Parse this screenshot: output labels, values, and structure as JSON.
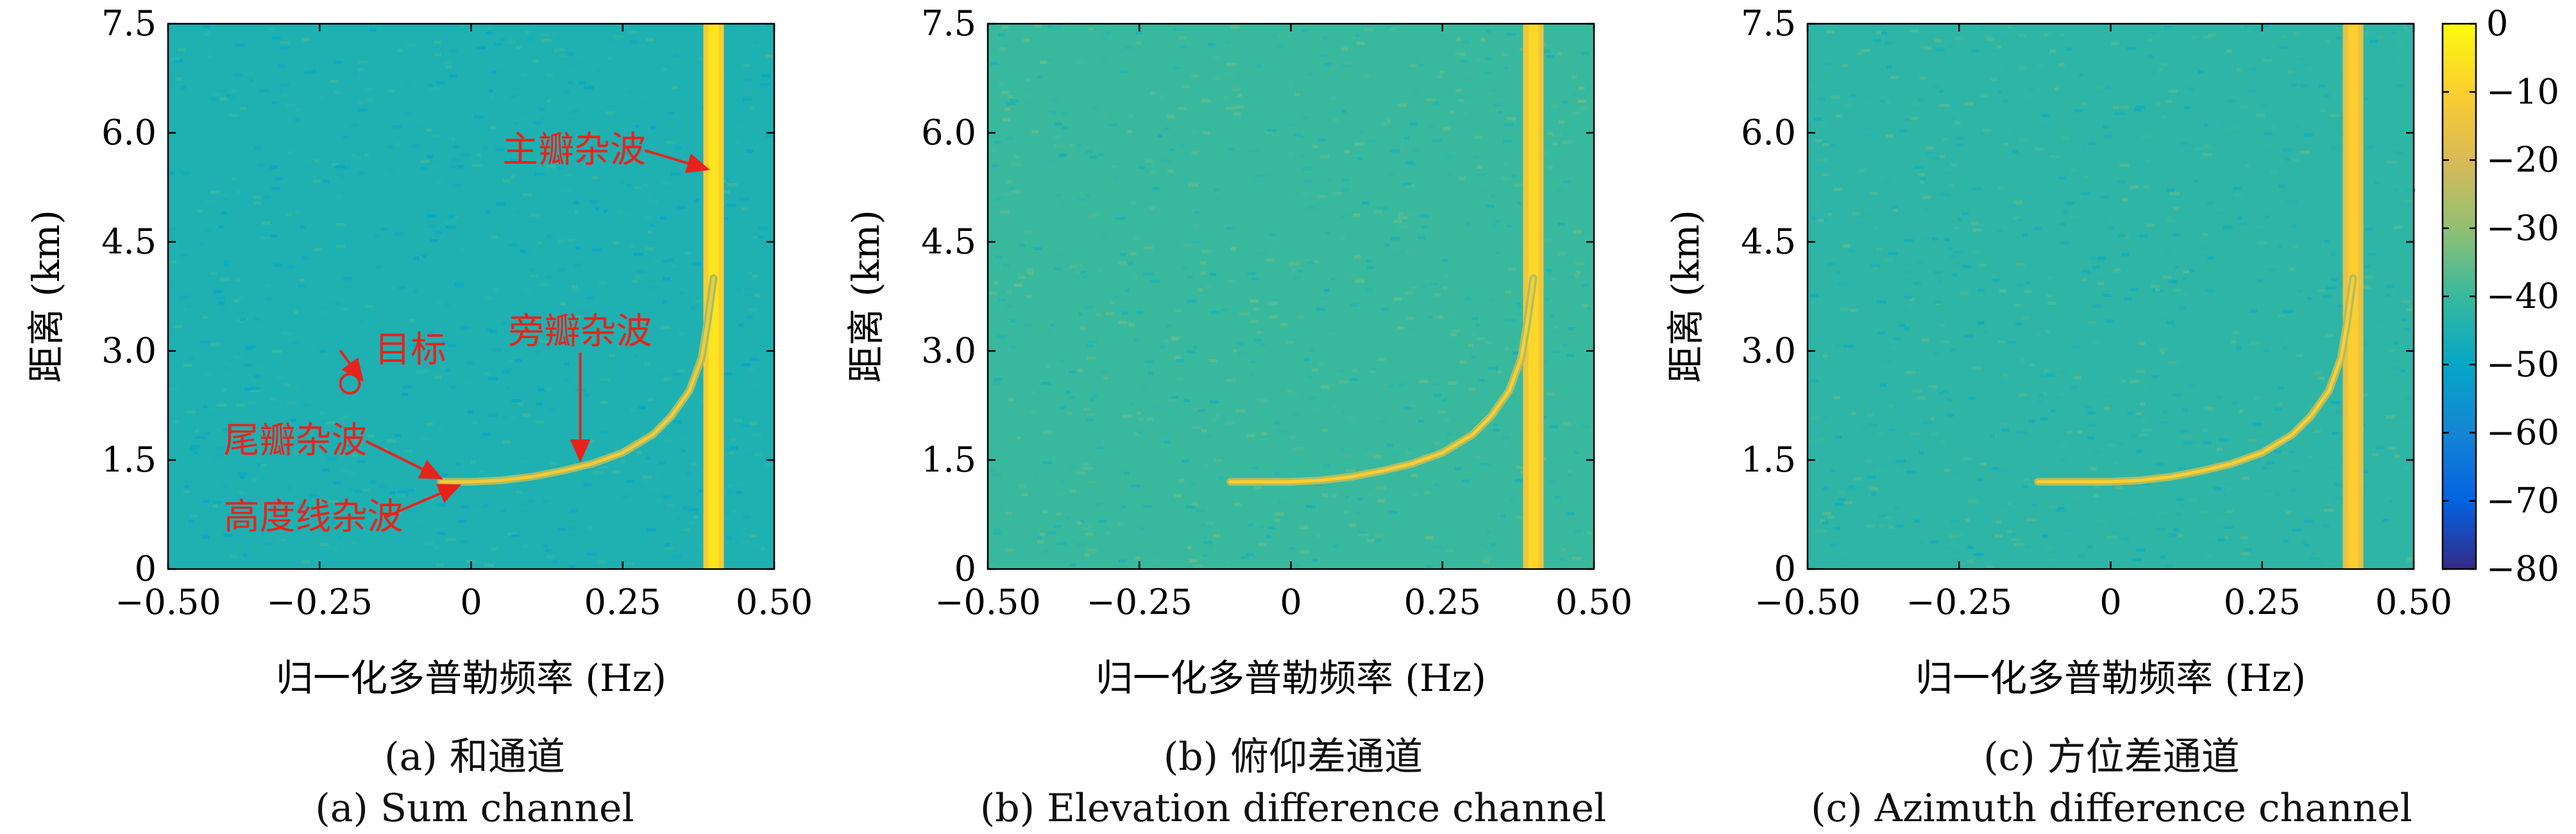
{
  "chart_data": [
    {
      "type": "heatmap",
      "panel": "a",
      "xlabel": "归一化多普勒频率 (Hz)",
      "ylabel": "距离 (km)",
      "xlim": [
        -0.5,
        0.5
      ],
      "ylim": [
        0,
        7.5
      ],
      "xticks": [
        -0.5,
        -0.25,
        0,
        0.25,
        0.5
      ],
      "xtick_labels": [
        "−0.50",
        "−0.25",
        "0",
        "0.25",
        "0.50"
      ],
      "yticks": [
        0,
        1.5,
        3.0,
        4.5,
        6.0,
        7.5
      ],
      "ytick_labels": [
        "0",
        "1.5",
        "3.0",
        "4.5",
        "6.0",
        "7.5"
      ],
      "background_db": -45,
      "mainlobe_clutter": {
        "doppler_hz": 0.4,
        "range_km": [
          0,
          7.5
        ],
        "db": -5
      },
      "altitude_line_km": 1.2,
      "sidelobe_curve": [
        [
          -0.05,
          1.2
        ],
        [
          0.0,
          1.2
        ],
        [
          0.05,
          1.22
        ],
        [
          0.1,
          1.27
        ],
        [
          0.15,
          1.35
        ],
        [
          0.2,
          1.45
        ],
        [
          0.25,
          1.6
        ],
        [
          0.3,
          1.85
        ],
        [
          0.33,
          2.1
        ],
        [
          0.36,
          2.45
        ],
        [
          0.38,
          2.9
        ],
        [
          0.39,
          3.4
        ],
        [
          0.4,
          4.0
        ]
      ],
      "curve_db": -20,
      "annotations": [
        {
          "text": "主瓣杂波",
          "x": 0.17,
          "y": 5.6,
          "arrow_to": [
            0.39,
            5.5
          ]
        },
        {
          "text": "旁瓣杂波",
          "x": 0.18,
          "y": 3.1,
          "arrow_to": [
            0.18,
            1.5
          ]
        },
        {
          "text": "目标",
          "x": -0.1,
          "y": 2.85,
          "arrow_to": [
            -0.18,
            2.6
          ],
          "marker": [
            -0.2,
            2.55
          ]
        },
        {
          "text": "尾瓣杂波",
          "x": -0.29,
          "y": 1.6,
          "arrow_to": [
            -0.05,
            1.25
          ]
        },
        {
          "text": "高度线杂波",
          "x": -0.26,
          "y": 0.55,
          "arrow_to": [
            -0.02,
            1.15
          ]
        }
      ],
      "caption_cn": "(a) 和通道",
      "caption_en": "(a) Sum channel"
    },
    {
      "type": "heatmap",
      "panel": "b",
      "xlabel": "归一化多普勒频率 (Hz)",
      "ylabel": "距离 (km)",
      "xlim": [
        -0.5,
        0.5
      ],
      "ylim": [
        0,
        7.5
      ],
      "xticks": [
        -0.5,
        -0.25,
        0,
        0.25,
        0.5
      ],
      "xtick_labels": [
        "−0.50",
        "−0.25",
        "0",
        "0.25",
        "0.50"
      ],
      "yticks": [
        0,
        1.5,
        3.0,
        4.5,
        6.0,
        7.5
      ],
      "ytick_labels": [
        "0",
        "1.5",
        "3.0",
        "4.5",
        "6.0",
        "7.5"
      ],
      "background_db": -40,
      "mainlobe_clutter": {
        "doppler_hz": 0.4,
        "range_km": [
          0,
          7.5
        ],
        "db": -8
      },
      "altitude_line_km": 1.2,
      "sidelobe_curve": [
        [
          -0.1,
          1.2
        ],
        [
          0.0,
          1.2
        ],
        [
          0.05,
          1.22
        ],
        [
          0.1,
          1.27
        ],
        [
          0.15,
          1.35
        ],
        [
          0.2,
          1.45
        ],
        [
          0.25,
          1.6
        ],
        [
          0.3,
          1.85
        ],
        [
          0.33,
          2.1
        ],
        [
          0.36,
          2.45
        ],
        [
          0.38,
          2.9
        ],
        [
          0.39,
          3.4
        ],
        [
          0.4,
          4.0
        ]
      ],
      "curve_db": -18,
      "annotations": [],
      "caption_cn": "(b) 俯仰差通道",
      "caption_en": "(b) Elevation difference channel"
    },
    {
      "type": "heatmap",
      "panel": "c",
      "xlabel": "归一化多普勒频率 (Hz)",
      "ylabel": "距离 (km)",
      "xlim": [
        -0.5,
        0.5
      ],
      "ylim": [
        0,
        7.5
      ],
      "xticks": [
        -0.5,
        -0.25,
        0,
        0.25,
        0.5
      ],
      "xtick_labels": [
        "−0.50",
        "−0.25",
        "0",
        "0.25",
        "0.50"
      ],
      "yticks": [
        0,
        1.5,
        3.0,
        4.5,
        6.0,
        7.5
      ],
      "ytick_labels": [
        "0",
        "1.5",
        "3.0",
        "4.5",
        "6.0",
        "7.5"
      ],
      "background_db": -42,
      "mainlobe_clutter": {
        "doppler_hz": 0.4,
        "range_km": [
          0,
          7.5
        ],
        "db": -10
      },
      "altitude_line_km": 1.2,
      "sidelobe_curve": [
        [
          -0.12,
          1.2
        ],
        [
          0.0,
          1.2
        ],
        [
          0.05,
          1.22
        ],
        [
          0.1,
          1.27
        ],
        [
          0.15,
          1.35
        ],
        [
          0.2,
          1.45
        ],
        [
          0.25,
          1.6
        ],
        [
          0.3,
          1.85
        ],
        [
          0.33,
          2.1
        ],
        [
          0.36,
          2.45
        ],
        [
          0.38,
          2.9
        ],
        [
          0.39,
          3.4
        ],
        [
          0.4,
          4.0
        ]
      ],
      "curve_db": -18,
      "annotations": [],
      "caption_cn": "(c) 方位差通道",
      "caption_en": "(c) Azimuth difference channel"
    }
  ],
  "colorbar": {
    "ticks": [
      0,
      -10,
      -20,
      -30,
      -40,
      -50,
      -60,
      -70,
      -80
    ],
    "range": [
      -80,
      0
    ],
    "colormap": "parula",
    "colors": [
      "#352a87",
      "#0363e1",
      "#1485d4",
      "#06a7c6",
      "#38b99e",
      "#92bf73",
      "#d9ba56",
      "#fcce2e",
      "#f9fb0e"
    ]
  },
  "style": {
    "annotation_color": "#e8231b",
    "axis_color": "#000000"
  }
}
